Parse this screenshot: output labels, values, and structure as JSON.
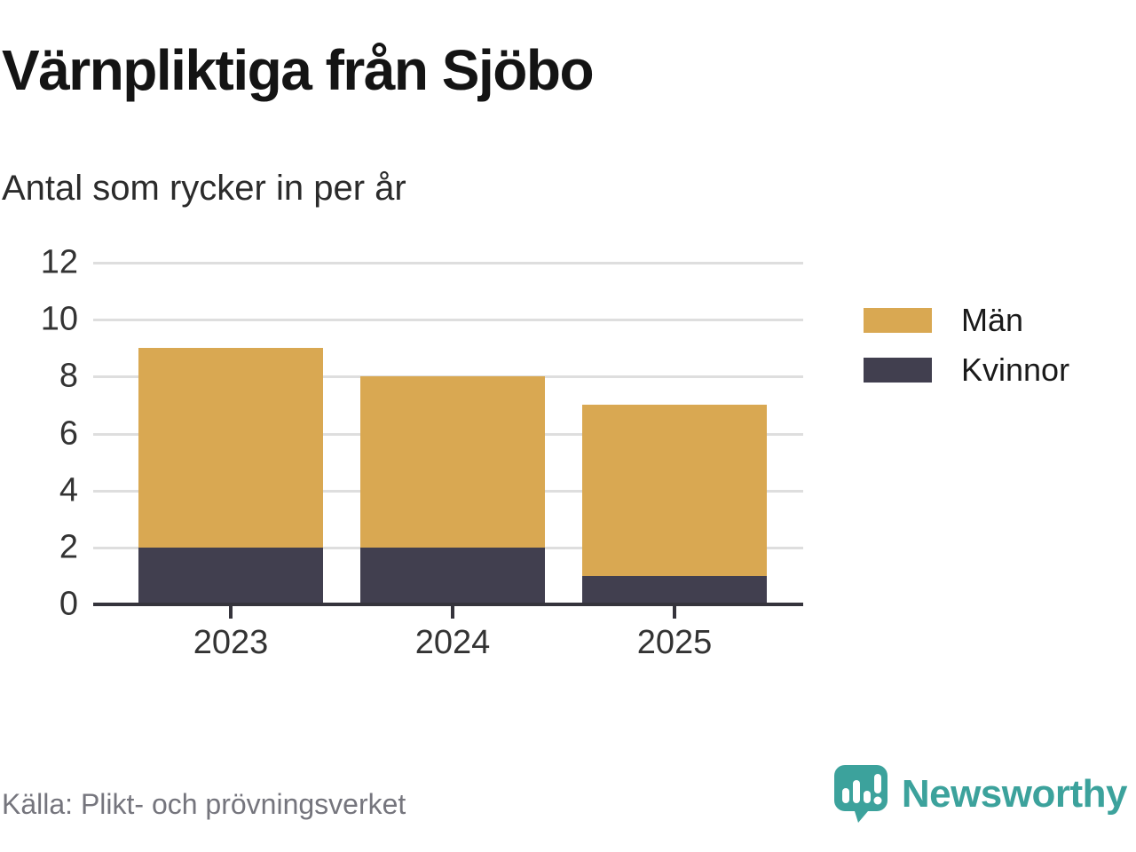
{
  "page": {
    "title": "Värnpliktiga från Sjöbo",
    "subtitle": "Antal som rycker in per år",
    "source": "Källa: Plikt- och prövningsverket"
  },
  "brand": {
    "name": "Newsworthy",
    "logo_icon": "bar-chart-speech-bubble-icon"
  },
  "colors": {
    "men": "#D9A852",
    "women": "#413F4F",
    "grid": "#DEDEDE",
    "axis": "#35343C",
    "teal": "#3CA29C",
    "tick_text": "#333333",
    "muted_text": "#75757D"
  },
  "chart_data": {
    "type": "bar",
    "stacked": true,
    "title": "Värnpliktiga från Sjöbo",
    "subtitle": "Antal som rycker in per år",
    "xlabel": "",
    "ylabel": "",
    "categories": [
      "2023",
      "2024",
      "2025"
    ],
    "series": [
      {
        "name": "Män",
        "color_key": "men",
        "values": [
          7,
          6,
          6
        ]
      },
      {
        "name": "Kvinnor",
        "color_key": "women",
        "values": [
          2,
          2,
          1
        ]
      }
    ],
    "stack_order_bottom_to_top": [
      "Kvinnor",
      "Män"
    ],
    "totals": [
      9,
      8,
      7
    ],
    "ylim": [
      0,
      12
    ],
    "ytick_step": 2,
    "yticks": [
      0,
      2,
      4,
      6,
      8,
      10,
      12
    ],
    "grid": true,
    "legend_position": "right",
    "source": "Källa: Plikt- och prövningsverket"
  }
}
